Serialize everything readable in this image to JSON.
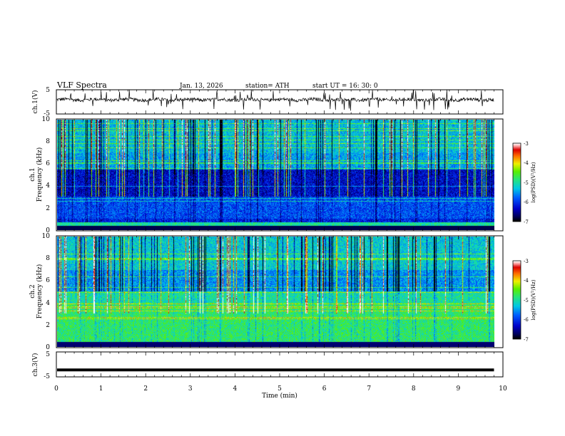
{
  "header": {
    "title": "VLF  Spectra",
    "date": "Jan. 13, 2026",
    "station": "station= ATH",
    "start": "start  UT  =   16: 30: 0"
  },
  "chart_data": [
    {
      "type": "line",
      "ylabel": "ch.1(V)",
      "ylim": [
        -5,
        5
      ],
      "yticks": [
        "5",
        "-5"
      ],
      "xlim": [
        0,
        10
      ],
      "description_value": "noise-like waveform around 0 V with sharp spikes"
    },
    {
      "type": "heatmap",
      "ylabel_channel": "ch.1",
      "ylabel": "Frequency  (kHz)",
      "ylim": [
        0,
        10
      ],
      "yticks": [
        "0",
        "2",
        "4",
        "6",
        "8",
        "10"
      ],
      "xlim": [
        0,
        10
      ],
      "data_end_min": 9.8,
      "colorbar": {
        "label": "log(PSD)(V²/Hz)",
        "range": [
          -7,
          -3
        ],
        "ticks": [
          "-3",
          "-4",
          "-5",
          "-6",
          "-7"
        ]
      }
    },
    {
      "type": "heatmap",
      "ylabel_channel": "ch.2",
      "ylabel": "Frequency  (kHz)",
      "ylim": [
        0,
        10
      ],
      "yticks": [
        "0",
        "2",
        "4",
        "6",
        "8",
        "10"
      ],
      "xlim": [
        0,
        10
      ],
      "data_end_min": 9.8,
      "colorbar": {
        "label": "log(PSD)(V²/Hz)",
        "range": [
          -7,
          -3
        ],
        "ticks": [
          "-3",
          "-4",
          "-5",
          "-6",
          "-7"
        ]
      }
    },
    {
      "type": "line",
      "ylabel": "ch.3(V)",
      "ylim": [
        -5,
        5
      ],
      "yticks": [
        "5",
        "-5"
      ],
      "xlim": [
        0,
        10
      ],
      "level": -2.2
    }
  ],
  "xaxis": {
    "label": "Time  (min)",
    "ticks": [
      "0",
      "1",
      "2",
      "3",
      "4",
      "5",
      "6",
      "7",
      "8",
      "9",
      "10"
    ]
  }
}
